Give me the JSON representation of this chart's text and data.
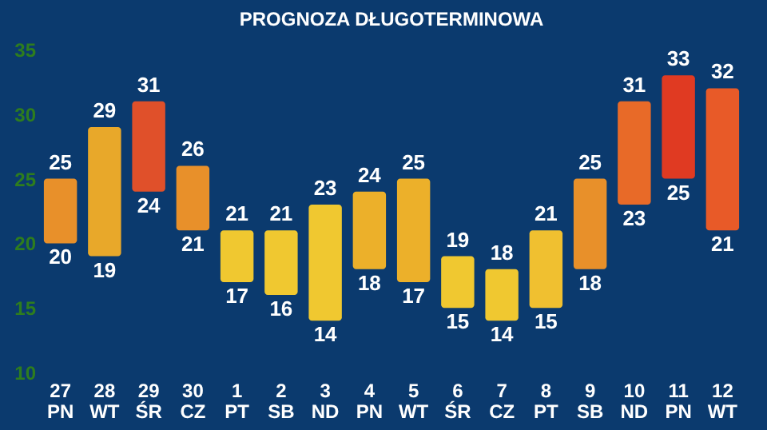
{
  "chart_data": {
    "type": "bar",
    "title": "PROGNOZA DŁUGOTERMINOWA",
    "categories": [
      "27 PN",
      "28 WT",
      "29 ŚR",
      "30 CZ",
      "1 PT",
      "2 SB",
      "3 ND",
      "4 PN",
      "5 WT",
      "6 ŚR",
      "7 CZ",
      "8 PT",
      "9 SB",
      "10 ND",
      "11 PN",
      "12 WT"
    ],
    "base": [
      20,
      19,
      24,
      21,
      17,
      16,
      14,
      18,
      17,
      15,
      14,
      15,
      18,
      23,
      25,
      21
    ],
    "values": [
      5,
      10,
      7,
      5,
      4,
      5,
      9,
      6,
      8,
      4,
      4,
      6,
      7,
      8,
      8,
      11
    ],
    "colors": [
      "#e8902a",
      "#e8a82a",
      "#e0502a",
      "#e8902a",
      "#f0c830",
      "#f0c830",
      "#f0c830",
      "#ecb02a",
      "#ecb02a",
      "#f0c830",
      "#f0c830",
      "#f0c030",
      "#e8902a",
      "#e86a28",
      "#e03a22",
      "#e85a28"
    ],
    "ylim": [
      10,
      35
    ],
    "yticks": [
      10,
      15,
      20,
      25,
      30,
      35
    ],
    "annotations": [
      {
        "text": "25",
        "x": "27 PN",
        "y": 25
      },
      {
        "text": "20",
        "x": "27 PN",
        "y": 20
      },
      {
        "text": "29",
        "x": "28 WT",
        "y": 29
      },
      {
        "text": "19",
        "x": "28 WT",
        "y": 19
      },
      {
        "text": "31",
        "x": "29 ŚR",
        "y": 31
      },
      {
        "text": "24",
        "x": "29 ŚR",
        "y": 24
      },
      {
        "text": "26",
        "x": "30 CZ",
        "y": 26
      },
      {
        "text": "21",
        "x": "30 CZ",
        "y": 21
      },
      {
        "text": "21",
        "x": "1 PT",
        "y": 21
      },
      {
        "text": "17",
        "x": "1 PT",
        "y": 17
      },
      {
        "text": "21",
        "x": "2 SB",
        "y": 21
      },
      {
        "text": "16",
        "x": "2 SB",
        "y": 16
      },
      {
        "text": "23",
        "x": "3 ND",
        "y": 23
      },
      {
        "text": "14",
        "x": "3 ND",
        "y": 14
      },
      {
        "text": "24",
        "x": "4 PN",
        "y": 24
      },
      {
        "text": "18",
        "x": "4 PN",
        "y": 18
      },
      {
        "text": "25",
        "x": "5 WT",
        "y": 25
      },
      {
        "text": "17",
        "x": "5 WT",
        "y": 17
      },
      {
        "text": "19",
        "x": "6 ŚR",
        "y": 19
      },
      {
        "text": "15",
        "x": "6 ŚR",
        "y": 15
      },
      {
        "text": "18",
        "x": "7 CZ",
        "y": 18
      },
      {
        "text": "14",
        "x": "7 CZ",
        "y": 14
      },
      {
        "text": "21",
        "x": "8 PT",
        "y": 21
      },
      {
        "text": "15",
        "x": "8 PT",
        "y": 15
      },
      {
        "text": "25",
        "x": "9 SB",
        "y": 25
      },
      {
        "text": "18",
        "x": "9 SB",
        "y": 18
      },
      {
        "text": "31",
        "x": "10 ND",
        "y": 31
      },
      {
        "text": "23",
        "x": "10 ND",
        "y": 23
      },
      {
        "text": "33",
        "x": "11 PN",
        "y": 33
      },
      {
        "text": "25",
        "x": "11 PN",
        "y": 25
      },
      {
        "text": "32",
        "x": "12 WT",
        "y": 32
      },
      {
        "text": "21",
        "x": "12 WT",
        "y": 21
      }
    ]
  }
}
